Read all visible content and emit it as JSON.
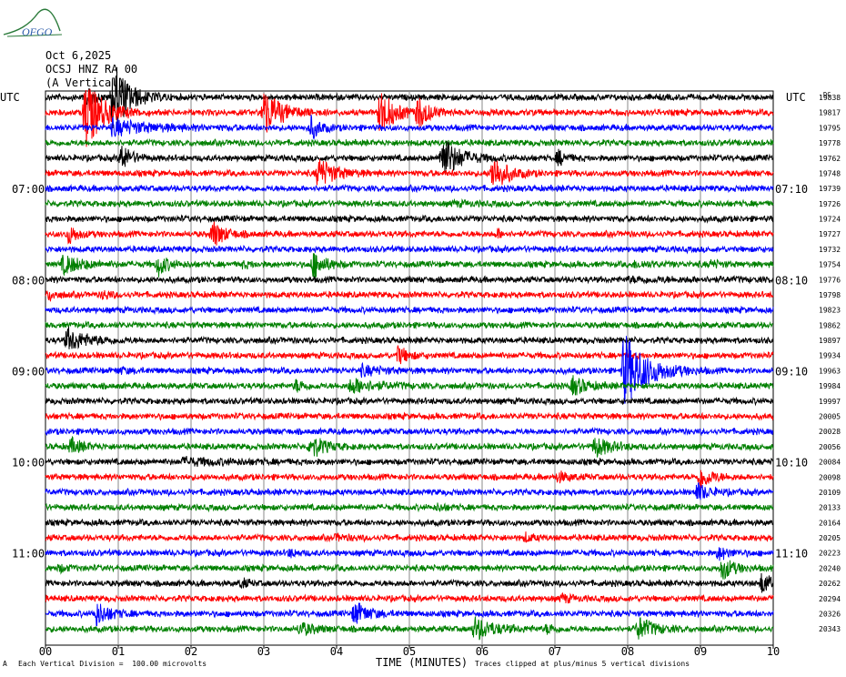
{
  "logo": {
    "text": "OFGO",
    "icon": "ofgo-logo-icon",
    "color": "#2a7a3a"
  },
  "header": {
    "date": "Oct 6,2025",
    "station": "OCSJ HNZ RA 00",
    "component": "(A Vertical)"
  },
  "footer": {
    "scale_note": "Each Vertical Division =  100.00 microvolts",
    "clip_note": "Traces clipped at plus/minus 5 vertical divisions",
    "corner_mark": "A"
  },
  "chart_data": {
    "type": "line",
    "title": "",
    "xlabel": "TIME (MINUTES)",
    "ylabel": "",
    "xlim": [
      0,
      10
    ],
    "x_ticks": [
      "00",
      "01",
      "02",
      "03",
      "04",
      "05",
      "06",
      "07",
      "08",
      "09",
      "10"
    ],
    "grid": true,
    "left_axis_label": "UTC",
    "right_axis_label": "UTC",
    "left_time_labels": [
      {
        "trace_index": 6,
        "text": "07:00"
      },
      {
        "trace_index": 12,
        "text": "08:00"
      },
      {
        "trace_index": 18,
        "text": "09:00"
      },
      {
        "trace_index": 24,
        "text": "10:00"
      },
      {
        "trace_index": 30,
        "text": "11:00"
      }
    ],
    "right_time_labels": [
      {
        "trace_index": 6,
        "text": "07:10"
      },
      {
        "trace_index": 12,
        "text": "08:10"
      },
      {
        "trace_index": 18,
        "text": "09:10"
      },
      {
        "trace_index": 24,
        "text": "10:10"
      },
      {
        "trace_index": 30,
        "text": "11:10"
      }
    ],
    "dc_header": "DC",
    "trace_colors": [
      "#000000",
      "#ff0000",
      "#0000ff",
      "#008000"
    ],
    "dc_offsets": [
      "19838",
      "19817",
      "19795",
      "19778",
      "19762",
      "19748",
      "19739",
      "19726",
      "19724",
      "19727",
      "19732",
      "19754",
      "19776",
      "19798",
      "19823",
      "19862",
      "19897",
      "19934",
      "19963",
      "19984",
      "19997",
      "20005",
      "20028",
      "20056",
      "20084",
      "20098",
      "20109",
      "20133",
      "20164",
      "20205",
      "20223",
      "20240",
      "20262",
      "20294",
      "20326",
      "20343"
    ],
    "events": [
      {
        "trace": 0,
        "t": 0.93,
        "amp": 5.0,
        "dur": 0.2
      },
      {
        "trace": 0,
        "t": 0.55,
        "amp": 1.5,
        "dur": 0.1
      },
      {
        "trace": 1,
        "t": 0.55,
        "amp": 5.0,
        "dur": 0.22
      },
      {
        "trace": 1,
        "t": 3.0,
        "amp": 3.2,
        "dur": 0.22
      },
      {
        "trace": 1,
        "t": 4.6,
        "amp": 3.2,
        "dur": 0.18
      },
      {
        "trace": 1,
        "t": 5.12,
        "amp": 2.0,
        "dur": 0.15
      },
      {
        "trace": 2,
        "t": 0.92,
        "amp": 1.0,
        "dur": 0.5
      },
      {
        "trace": 2,
        "t": 3.65,
        "amp": 1.5,
        "dur": 0.12
      },
      {
        "trace": 4,
        "t": 1.05,
        "amp": 1.8,
        "dur": 0.12
      },
      {
        "trace": 4,
        "t": 5.45,
        "amp": 3.0,
        "dur": 0.22
      },
      {
        "trace": 4,
        "t": 7.05,
        "amp": 1.0,
        "dur": 0.1
      },
      {
        "trace": 5,
        "t": 3.75,
        "amp": 2.0,
        "dur": 0.22
      },
      {
        "trace": 5,
        "t": 6.15,
        "amp": 2.5,
        "dur": 0.18
      },
      {
        "trace": 7,
        "t": 5.6,
        "amp": 0.2,
        "dur": 0.3
      },
      {
        "trace": 9,
        "t": 0.32,
        "amp": 1.2,
        "dur": 0.12
      },
      {
        "trace": 9,
        "t": 2.3,
        "amp": 1.8,
        "dur": 0.15
      },
      {
        "trace": 9,
        "t": 6.22,
        "amp": 0.6,
        "dur": 0.05
      },
      {
        "trace": 11,
        "t": 0.25,
        "amp": 1.2,
        "dur": 0.25
      },
      {
        "trace": 11,
        "t": 1.55,
        "amp": 1.5,
        "dur": 0.12
      },
      {
        "trace": 11,
        "t": 3.68,
        "amp": 1.8,
        "dur": 0.15
      },
      {
        "trace": 11,
        "t": 2.7,
        "amp": 0.3,
        "dur": 0.15
      },
      {
        "trace": 11,
        "t": 8.1,
        "amp": 0.3,
        "dur": 0.3
      },
      {
        "trace": 11,
        "t": 9.15,
        "amp": 0.4,
        "dur": 0.12
      },
      {
        "trace": 12,
        "t": 8.0,
        "amp": 0.2,
        "dur": 1.0
      },
      {
        "trace": 13,
        "t": 0.05,
        "amp": 0.6,
        "dur": 0.1
      },
      {
        "trace": 13,
        "t": 0.8,
        "amp": 0.5,
        "dur": 0.1
      },
      {
        "trace": 16,
        "t": 0.3,
        "amp": 1.5,
        "dur": 0.25
      },
      {
        "trace": 17,
        "t": 4.85,
        "amp": 1.2,
        "dur": 0.12
      },
      {
        "trace": 18,
        "t": 1.0,
        "amp": 0.3,
        "dur": 0.15
      },
      {
        "trace": 18,
        "t": 4.35,
        "amp": 0.6,
        "dur": 0.25
      },
      {
        "trace": 18,
        "t": 7.95,
        "amp": 5.0,
        "dur": 0.3
      },
      {
        "trace": 19,
        "t": 3.45,
        "amp": 0.8,
        "dur": 0.1
      },
      {
        "trace": 19,
        "t": 4.2,
        "amp": 1.0,
        "dur": 0.3
      },
      {
        "trace": 19,
        "t": 7.25,
        "amp": 1.2,
        "dur": 0.18
      },
      {
        "trace": 23,
        "t": 0.35,
        "amp": 1.0,
        "dur": 0.15
      },
      {
        "trace": 23,
        "t": 3.65,
        "amp": 1.5,
        "dur": 0.18
      },
      {
        "trace": 23,
        "t": 7.55,
        "amp": 1.3,
        "dur": 0.2
      },
      {
        "trace": 24,
        "t": 1.9,
        "amp": 0.4,
        "dur": 0.6
      },
      {
        "trace": 25,
        "t": 7.05,
        "amp": 0.6,
        "dur": 0.15
      },
      {
        "trace": 25,
        "t": 9.0,
        "amp": 1.5,
        "dur": 0.15
      },
      {
        "trace": 26,
        "t": 8.95,
        "amp": 1.2,
        "dur": 0.15
      },
      {
        "trace": 27,
        "t": 5.4,
        "amp": 0.4,
        "dur": 0.1
      },
      {
        "trace": 29,
        "t": 4.0,
        "amp": 0.3,
        "dur": 0.2
      },
      {
        "trace": 29,
        "t": 6.6,
        "amp": 0.5,
        "dur": 0.1
      },
      {
        "trace": 30,
        "t": 3.35,
        "amp": 0.4,
        "dur": 0.12
      },
      {
        "trace": 30,
        "t": 9.25,
        "amp": 0.8,
        "dur": 0.15
      },
      {
        "trace": 31,
        "t": 0.2,
        "amp": 0.4,
        "dur": 0.1
      },
      {
        "trace": 31,
        "t": 9.3,
        "amp": 1.5,
        "dur": 0.15
      },
      {
        "trace": 32,
        "t": 2.7,
        "amp": 0.6,
        "dur": 0.08
      },
      {
        "trace": 32,
        "t": 9.85,
        "amp": 1.5,
        "dur": 0.12
      },
      {
        "trace": 33,
        "t": 7.1,
        "amp": 0.5,
        "dur": 0.12
      },
      {
        "trace": 34,
        "t": 0.7,
        "amp": 1.5,
        "dur": 0.18
      },
      {
        "trace": 34,
        "t": 4.25,
        "amp": 1.5,
        "dur": 0.18
      },
      {
        "trace": 35,
        "t": 3.5,
        "amp": 0.8,
        "dur": 0.2
      },
      {
        "trace": 35,
        "t": 5.9,
        "amp": 1.5,
        "dur": 0.25
      },
      {
        "trace": 35,
        "t": 8.15,
        "amp": 1.5,
        "dur": 0.2
      },
      {
        "trace": 35,
        "t": 6.9,
        "amp": 0.6,
        "dur": 0.1
      }
    ]
  }
}
